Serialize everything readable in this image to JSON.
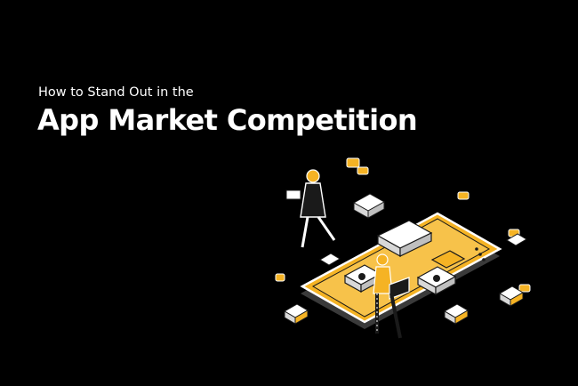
{
  "banner": {
    "subtitle": "How to Stand Out in the",
    "title": "App Market Competition"
  },
  "colors": {
    "background": "#000000",
    "accent": "#f5b324",
    "text": "#ffffff"
  },
  "illustration": {
    "icon": "isometric-smartphone-app-market-icon"
  }
}
